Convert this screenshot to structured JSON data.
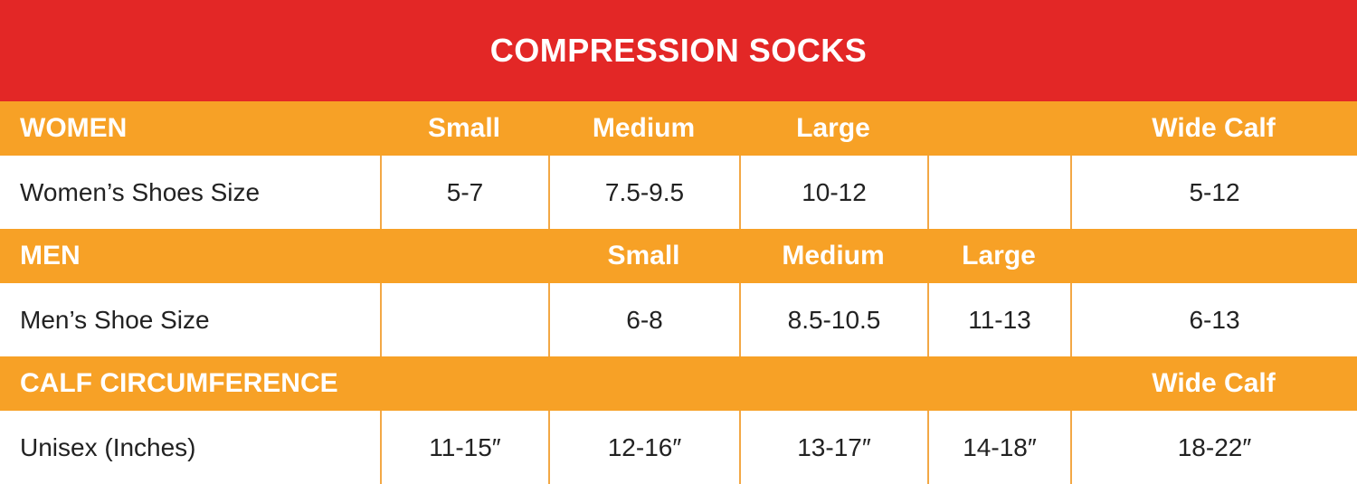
{
  "title": "COMPRESSION SOCKS",
  "sections": [
    {
      "header": [
        "WOMEN",
        "Small",
        "Medium",
        "Large",
        null,
        "Wide Calf"
      ],
      "row": [
        "Women’s Shoes Size",
        "5-7",
        "7.5-9.5",
        "10-12",
        null,
        "5-12"
      ]
    },
    {
      "header": [
        "MEN",
        null,
        "Small",
        "Medium",
        "Large",
        null
      ],
      "row": [
        "Men’s Shoe Size",
        null,
        "6-8",
        "8.5-10.5",
        "11-13",
        "6-13"
      ]
    },
    {
      "header": [
        "CALF CIRCUMFERENCE",
        null,
        null,
        null,
        null,
        "Wide Calf"
      ],
      "row": [
        "Unisex (Inches)",
        "11-15″",
        "12-16″",
        "13-17″",
        "14-18″",
        "18-22″"
      ]
    }
  ]
}
